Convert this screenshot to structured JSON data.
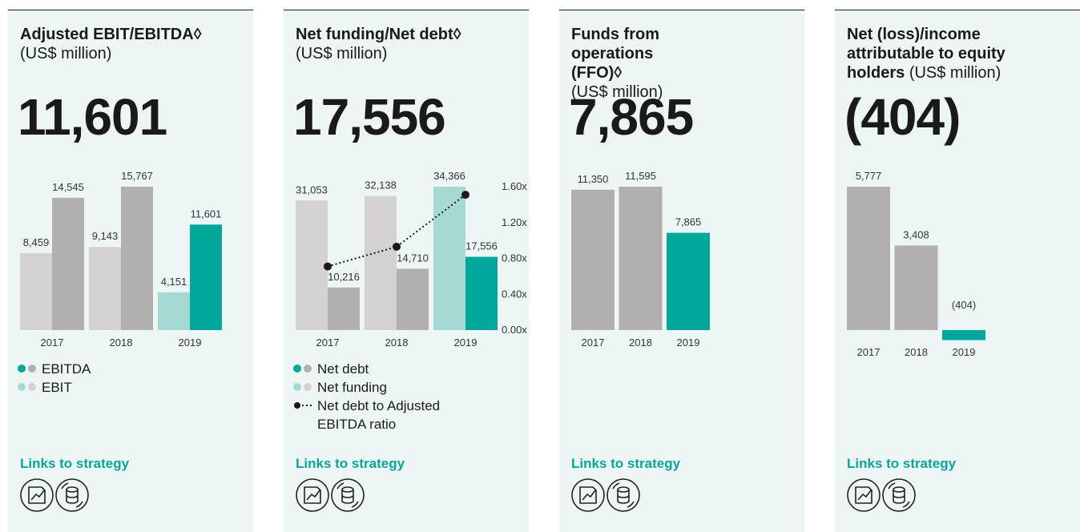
{
  "chart_data": [
    {
      "type": "bar",
      "title": "Adjusted EBIT/EBITDA◊",
      "subtitle": "(US$ million)",
      "headline": "11,601",
      "categories": [
        "2017",
        "2018",
        "2019"
      ],
      "series": [
        {
          "name": "EBITDA",
          "colors": [
            "#b2afb1",
            "#b2afb1",
            "#00a89c"
          ],
          "values": [
            14545,
            15767,
            11601
          ],
          "value_labels": [
            "14,545",
            "15,767",
            "11,601"
          ]
        },
        {
          "name": "EBIT",
          "colors": [
            "#d4d1d3",
            "#d4d1d3",
            "#a6d9d4"
          ],
          "values": [
            8459,
            9143,
            4151
          ],
          "value_labels": [
            "8,459",
            "9,143",
            "4,151"
          ]
        }
      ],
      "footer": "Links to strategy"
    },
    {
      "type": "bar",
      "title": "Net funding/Net debt◊",
      "subtitle": "(US$ million)",
      "headline": "17,556",
      "categories": [
        "2017",
        "2018",
        "2019"
      ],
      "series": [
        {
          "name": "Net debt",
          "colors": [
            "#b2afb1",
            "#b2afb1",
            "#00a89c"
          ],
          "values": [
            10216,
            14710,
            17556
          ],
          "value_labels": [
            "10,216",
            "14,710",
            "17,556"
          ]
        },
        {
          "name": "Net funding",
          "colors": [
            "#d4d1d3",
            "#d4d1d3",
            "#a6d9d4"
          ],
          "values": [
            31053,
            32138,
            34366
          ],
          "value_labels": [
            "31,053",
            "32,138",
            "34,366"
          ]
        },
        {
          "name": "Net debt to Adjusted EBITDA ratio",
          "type": "line",
          "axis": "y2",
          "color": "#1a1a1a",
          "values": [
            0.71,
            0.93,
            1.51
          ]
        }
      ],
      "y2lim": [
        0,
        1.6
      ],
      "y2ticks": [
        {
          "value": 0,
          "label": "0.00x"
        },
        {
          "value": 0.4,
          "label": "0.40x"
        },
        {
          "value": 0.8,
          "label": "0.80x"
        },
        {
          "value": 1.2,
          "label": "1.20x"
        },
        {
          "value": 1.6,
          "label": "1.60x"
        }
      ],
      "footer": "Links to strategy"
    },
    {
      "type": "bar",
      "title": "Funds from operations (FFO)◊",
      "subtitle": "(US$ million)",
      "headline": "7,865",
      "categories": [
        "2017",
        "2018",
        "2019"
      ],
      "values": [
        11350,
        11595,
        7865
      ],
      "value_labels": [
        "11,350",
        "11,595",
        "7,865"
      ],
      "colors": [
        "#b2afb1",
        "#b2afb1",
        "#00a89c"
      ],
      "footer": "Links to strategy"
    },
    {
      "type": "bar",
      "title": "Net (loss)/income attributable to equity holders",
      "subtitle": "(US$ million)",
      "headline": "(404)",
      "categories": [
        "2017",
        "2018",
        "2019"
      ],
      "values": [
        5777,
        3408,
        -404
      ],
      "value_labels": [
        "5,777",
        "3,408",
        "(404)"
      ],
      "colors": [
        "#b2afb1",
        "#b2afb1",
        "#00a89c"
      ],
      "footer": "Links to strategy"
    }
  ]
}
